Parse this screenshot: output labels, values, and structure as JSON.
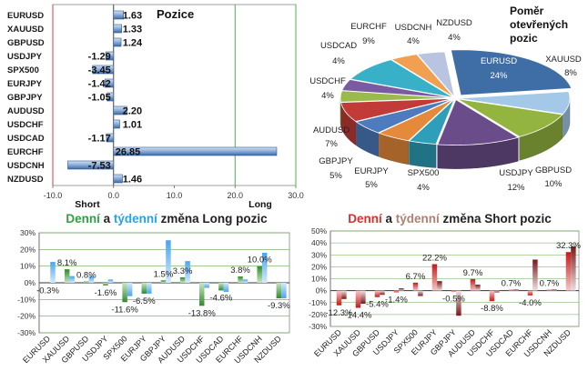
{
  "chart_data": [
    {
      "type": "bar",
      "orientation": "horizontal",
      "title": "Pozice",
      "categories": [
        "EURUSD",
        "XAUUSD",
        "GBPUSD",
        "USDJPY",
        "SPX500",
        "EURJPY",
        "GBPJPY",
        "AUDUSD",
        "USDCHF",
        "USDCAD",
        "EURCHF",
        "USDCNH",
        "NZDUSD"
      ],
      "values": [
        1.63,
        1.33,
        1.24,
        -1.29,
        -3.45,
        -1.42,
        -1.05,
        2.2,
        1.01,
        -1.17,
        26.85,
        -7.53,
        1.46
      ],
      "value_labels": [
        "1.63",
        "1.33",
        "1.24",
        "-1.29",
        "-3.45",
        "-1.42",
        "-1.05",
        "2.20",
        "1.01",
        "-1.17",
        "26.85",
        "-7.53",
        "1.46"
      ],
      "xlim": [
        -10,
        30
      ],
      "xticks": [
        "-10.0",
        "0.0",
        "10.0",
        "20.0",
        "30.0"
      ],
      "side_labels": {
        "short": "Short",
        "long": "Long"
      },
      "colors": {
        "bar": "#4a74b2",
        "bar_light": "#c9d8ee",
        "axis_red": "#cc4444",
        "grid_green": "#4caf50"
      }
    },
    {
      "type": "pie",
      "title_lines": [
        "Poměr",
        "otevřených",
        "pozic"
      ],
      "slices": [
        {
          "name": "EURUSD",
          "value": 24,
          "label": "24%",
          "color": "#3f6ea6"
        },
        {
          "name": "XAUUSD",
          "value": 8,
          "label": "8%",
          "color": "#a4c8e8"
        },
        {
          "name": "GBPUSD",
          "value": 10,
          "label": "10%",
          "color": "#93b540"
        },
        {
          "name": "USDJPY",
          "value": 12,
          "label": "12%",
          "color": "#6b4c8a"
        },
        {
          "name": "SPX500",
          "value": 4,
          "label": "4%",
          "color": "#2f9fb9"
        },
        {
          "name": "EURJPY",
          "value": 5,
          "label": "5%",
          "color": "#e5893a"
        },
        {
          "name": "GBPJPY",
          "value": 5,
          "label": "5%",
          "color": "#4d7bbd"
        },
        {
          "name": "AUDUSD",
          "value": 7,
          "label": "7%",
          "color": "#c23b38"
        },
        {
          "name": "USDCHF",
          "value": 4,
          "label": "4%",
          "color": "#9aba4e"
        },
        {
          "name": "USDCAD",
          "value": 4,
          "label": "4%",
          "color": "#7a5aa0"
        },
        {
          "name": "EURCHF",
          "value": 9,
          "label": "9%",
          "color": "#37b0c8"
        },
        {
          "name": "USDCNH",
          "value": 4,
          "label": "4%",
          "color": "#f0a050"
        },
        {
          "name": "NZDUSD",
          "value": 4,
          "label": "4%",
          "color": "#b8c4e0"
        }
      ]
    },
    {
      "type": "bar",
      "title_parts": [
        {
          "text": "Denní",
          "color": "#2ea043"
        },
        {
          "text": " a ",
          "color": "#222222"
        },
        {
          "text": "týdenní",
          "color": "#29a3e0"
        },
        {
          "text": " změna Long pozic",
          "color": "#222222"
        }
      ],
      "categories": [
        "EURUSD",
        "XAUUSD",
        "GBPUSD",
        "USDJPY",
        "SPX500",
        "EURJPY",
        "GBPJPY",
        "AUDUSD",
        "USDCHF",
        "USDCAD",
        "EURCHF",
        "USDCNH",
        "NZDUSD"
      ],
      "series": [
        {
          "name": "Denní",
          "values": [
            -0.3,
            8.1,
            0.8,
            -1.6,
            -11.6,
            -6.5,
            1.5,
            3.3,
            -13.8,
            -4.6,
            3.8,
            10.0,
            -9.3
          ],
          "color": "#2e8b2e"
        },
        {
          "name": "týdenní",
          "values": [
            12.5,
            4.0,
            4.0,
            2.0,
            -8.0,
            -6.5,
            25.5,
            13.0,
            -3.0,
            -5.5,
            2.0,
            18.0,
            -9.3
          ],
          "color": "#5aaef0"
        }
      ],
      "value_labels": [
        "-0.3%",
        "8.1%",
        "0.8%",
        "-1.6%",
        "-11.6%",
        "-6.5%",
        "1.5%",
        "3.3%",
        "-13.8%",
        "-4.6%",
        "3.8%",
        "10.0%",
        "-9.3%"
      ],
      "ylim": [
        -30,
        30
      ],
      "yticks": [
        "30%",
        "20%",
        "10%",
        "0%",
        "-10%",
        "-20%",
        "-30%"
      ]
    },
    {
      "type": "bar",
      "title_parts": [
        {
          "text": "Denní",
          "color": "#d93030"
        },
        {
          "text": " a ",
          "color": "#222222"
        },
        {
          "text": "týdenní",
          "color": "#b08070"
        },
        {
          "text": " změna Short pozic",
          "color": "#222222"
        }
      ],
      "categories": [
        "EURUSD",
        "XAUUSD",
        "GBPUSD",
        "USDJPY",
        "SPX500",
        "EURJPY",
        "GBPJPY",
        "AUDUSD",
        "USDCHF",
        "USDCAD",
        "EURCHF",
        "USDCNH",
        "NZDUSD"
      ],
      "series": [
        {
          "name": "Denní",
          "values": [
            -12.3,
            -14.4,
            -5.4,
            -1.4,
            6.7,
            22.2,
            -0.5,
            9.7,
            -8.8,
            0.7,
            -4.0,
            0.7,
            32.3
          ],
          "color": "#c81818"
        },
        {
          "name": "týdenní",
          "values": [
            -7.0,
            -11.0,
            -3.5,
            2.0,
            -4.5,
            8.0,
            -21.0,
            5.0,
            -1.5,
            1.0,
            26.0,
            1.0,
            37.0
          ],
          "color": "#8b2020"
        }
      ],
      "value_labels": [
        "-12.3%",
        "-14.4%",
        "-5.4%",
        "-1.4%",
        "6.7%",
        "22.2%",
        "-0.5%",
        "9.7%",
        "-8.8%",
        "0.7%",
        "-4.0%",
        "0.7%",
        "32.3%"
      ],
      "ylim": [
        -30,
        50
      ],
      "yticks": [
        "50%",
        "40%",
        "30%",
        "20%",
        "10%",
        "0%",
        "-10%",
        "-20%",
        "-30%"
      ]
    }
  ]
}
